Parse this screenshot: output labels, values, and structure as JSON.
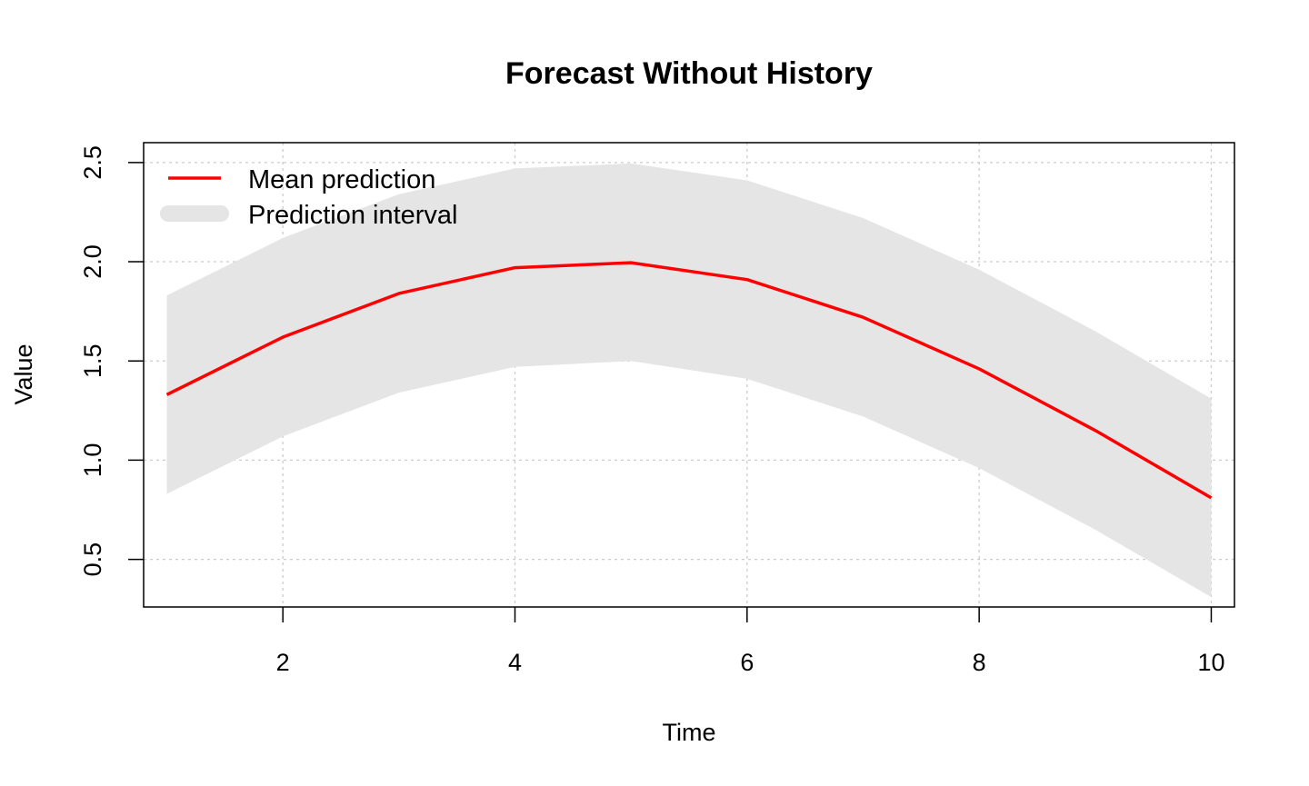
{
  "chart_data": {
    "type": "line",
    "title": "Forecast Without History",
    "xlabel": "Time",
    "ylabel": "Value",
    "xlim": [
      0.8,
      10.2
    ],
    "ylim": [
      0.26,
      2.6
    ],
    "x_ticks": [
      2,
      4,
      6,
      8,
      10
    ],
    "x_tick_labels": [
      "2",
      "4",
      "6",
      "8",
      "10"
    ],
    "y_ticks": [
      0.5,
      1.0,
      1.5,
      2.0,
      2.5
    ],
    "y_tick_labels": [
      "0.5",
      "1.0",
      "1.5",
      "2.0",
      "2.5"
    ],
    "grid": true,
    "legend_position": "top-left",
    "x": [
      1,
      2,
      3,
      4,
      5,
      6,
      7,
      8,
      9,
      10
    ],
    "series": [
      {
        "name": "Mean prediction",
        "kind": "line",
        "color": "#ff0000",
        "values": [
          1.33,
          1.62,
          1.84,
          1.97,
          1.995,
          1.91,
          1.72,
          1.46,
          1.15,
          0.81
        ]
      },
      {
        "name": "Prediction interval",
        "kind": "band",
        "color": "#e5e5e5",
        "lower": [
          0.83,
          1.12,
          1.34,
          1.47,
          1.5,
          1.41,
          1.22,
          0.96,
          0.65,
          0.31
        ],
        "upper": [
          1.83,
          2.12,
          2.34,
          2.47,
          2.495,
          2.41,
          2.22,
          1.96,
          1.65,
          1.31
        ]
      }
    ]
  }
}
